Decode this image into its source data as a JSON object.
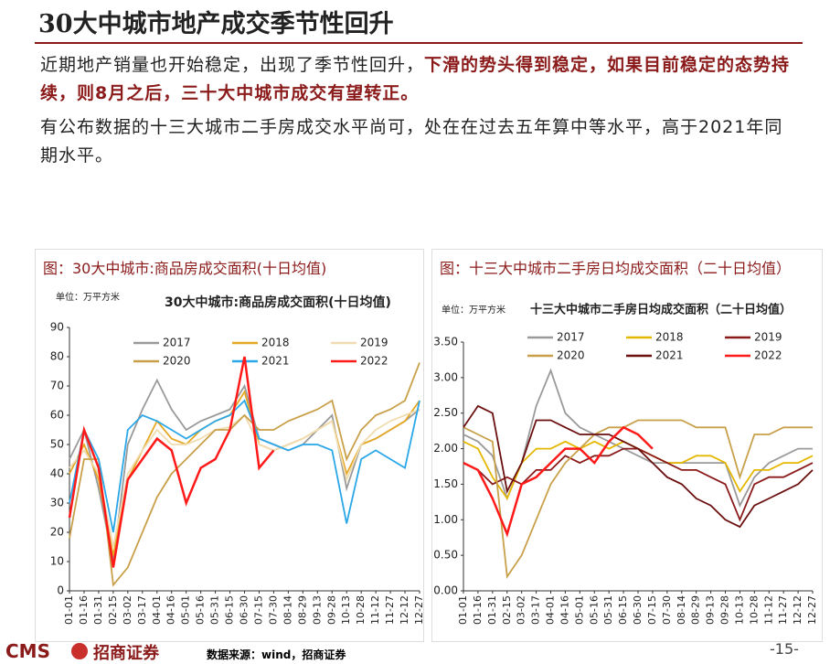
{
  "header": {
    "title": "30大中城市地产成交季节性回升"
  },
  "paragraphs": [
    {
      "text": "近期地产销量也开始稳定，出现了季节性回升，",
      "highlight": "下滑的势头得到稳定，如果目前稳定的态势持续，则8月之后，三十大中城市成交有望转正。"
    },
    {
      "text": "有公布数据的十三大城市二手房成交水平尚可，处在在过去五年算中等水平，高于2021年同期水平。"
    }
  ],
  "chart_data": [
    {
      "type": "line",
      "caption": "图：30大中城市:商品房成交面积(十日均值)",
      "unit": "单位：万平方米",
      "title": "30大中城市:商品房成交面积(十日均值)",
      "categories": [
        "01-01",
        "01-16",
        "01-31",
        "02-15",
        "03-02",
        "03-17",
        "04-01",
        "04-16",
        "05-01",
        "05-16",
        "05-31",
        "06-15",
        "06-30",
        "07-15",
        "07-30",
        "08-14",
        "08-29",
        "09-13",
        "09-28",
        "10-13",
        "10-28",
        "11-12",
        "11-27",
        "12-12",
        "12-27"
      ],
      "ylim": [
        0,
        90
      ],
      "yticks": [
        0,
        10,
        20,
        30,
        40,
        50,
        60,
        70,
        80,
        90
      ],
      "series": [
        {
          "name": "2017",
          "color": "#9a9a9a",
          "values": [
            45,
            55,
            35,
            10,
            50,
            62,
            72,
            62,
            55,
            58,
            60,
            62,
            70,
            52,
            50,
            48,
            50,
            55,
            60,
            35,
            50,
            52,
            55,
            58,
            62
          ]
        },
        {
          "name": "2018",
          "color": "#e5a823",
          "values": [
            40,
            50,
            38,
            12,
            38,
            48,
            58,
            52,
            50,
            55,
            58,
            60,
            68,
            50,
            48,
            50,
            52,
            55,
            58,
            40,
            50,
            52,
            55,
            58,
            65
          ]
        },
        {
          "name": "2019",
          "color": "#f0dcb0",
          "values": [
            42,
            48,
            40,
            15,
            40,
            48,
            55,
            50,
            50,
            52,
            55,
            56,
            60,
            50,
            48,
            50,
            52,
            55,
            58,
            38,
            50,
            55,
            58,
            60,
            62
          ]
        },
        {
          "name": "2020",
          "color": "#c9a04a",
          "values": [
            18,
            45,
            45,
            2,
            8,
            20,
            32,
            40,
            45,
            50,
            55,
            55,
            60,
            55,
            55,
            58,
            60,
            62,
            65,
            45,
            55,
            60,
            62,
            65,
            78
          ]
        },
        {
          "name": "2021",
          "color": "#2aa7e8",
          "values": [
            30,
            55,
            45,
            20,
            55,
            60,
            58,
            55,
            52,
            55,
            58,
            60,
            65,
            52,
            50,
            48,
            50,
            50,
            48,
            23,
            45,
            48,
            45,
            42,
            65
          ]
        },
        {
          "name": "2022",
          "color": "#ff1a1a",
          "values": [
            25,
            55,
            42,
            8,
            38,
            45,
            52,
            48,
            30,
            42,
            45,
            55,
            80,
            42,
            48,
            null,
            null,
            null,
            null,
            null,
            null,
            null,
            null,
            null,
            null
          ]
        }
      ]
    },
    {
      "type": "line",
      "caption": "图：十三大中城市二手房日均成交面积（二十日均值）",
      "unit": "单位：万平方米",
      "title": "十三大中城市二手房日均成交面积（二十日均值）",
      "categories": [
        "01-01",
        "01-16",
        "01-31",
        "02-15",
        "03-02",
        "03-17",
        "04-01",
        "04-16",
        "05-01",
        "05-16",
        "05-31",
        "06-15",
        "06-30",
        "07-15",
        "07-30",
        "08-14",
        "08-29",
        "09-13",
        "09-28",
        "10-13",
        "10-28",
        "11-12",
        "11-27",
        "12-12",
        "12-27"
      ],
      "ylim": [
        0,
        3.5
      ],
      "yticks": [
        {
          "value": 0,
          "label": "0.00"
        },
        {
          "value": 0.5,
          "label": "0.50"
        },
        {
          "value": 1,
          "label": "1.00"
        },
        {
          "value": 1.5,
          "label": "1.50"
        },
        {
          "value": 2,
          "label": "2.00"
        },
        {
          "value": 2.5,
          "label": "2.50"
        },
        {
          "value": 3,
          "label": "3.00"
        },
        {
          "value": 3.5,
          "label": "3.50"
        }
      ],
      "series": [
        {
          "name": "2017",
          "color": "#9a9a9a",
          "values": [
            2.2,
            2.1,
            1.9,
            1.3,
            1.8,
            2.6,
            3.1,
            2.5,
            2.3,
            2.2,
            2.1,
            2.0,
            1.9,
            1.8,
            1.8,
            1.8,
            1.8,
            1.8,
            1.8,
            1.2,
            1.6,
            1.8,
            1.9,
            2.0,
            2.0
          ]
        },
        {
          "name": "2018",
          "color": "#e5b800",
          "values": [
            2.1,
            2.0,
            1.6,
            1.3,
            1.8,
            2.0,
            2.0,
            2.1,
            2.0,
            2.1,
            2.0,
            2.1,
            2.0,
            1.9,
            1.8,
            1.8,
            1.9,
            1.9,
            1.8,
            1.4,
            1.7,
            1.7,
            1.8,
            1.8,
            1.9
          ]
        },
        {
          "name": "2019",
          "color": "#8b1a1a",
          "values": [
            1.8,
            1.7,
            1.5,
            1.6,
            1.5,
            1.7,
            1.7,
            1.9,
            1.8,
            1.9,
            1.9,
            2.0,
            2.0,
            1.9,
            1.8,
            1.7,
            1.7,
            1.6,
            1.5,
            1.0,
            1.5,
            1.6,
            1.6,
            1.7,
            1.8
          ]
        },
        {
          "name": "2020",
          "color": "#c9a04a",
          "values": [
            2.3,
            2.2,
            2.1,
            0.2,
            0.5,
            1.0,
            1.5,
            1.8,
            2.0,
            2.2,
            2.3,
            2.3,
            2.4,
            2.4,
            2.4,
            2.4,
            2.3,
            2.3,
            2.3,
            1.6,
            2.2,
            2.2,
            2.3,
            2.3,
            2.3
          ]
        },
        {
          "name": "2021",
          "color": "#6b0f0f",
          "values": [
            2.3,
            2.6,
            2.5,
            1.4,
            1.8,
            2.4,
            2.4,
            2.3,
            2.2,
            2.2,
            2.2,
            2.1,
            2.0,
            1.8,
            1.6,
            1.5,
            1.3,
            1.2,
            1.0,
            0.9,
            1.2,
            1.3,
            1.4,
            1.5,
            1.7
          ]
        },
        {
          "name": "2022",
          "color": "#ff1a1a",
          "values": [
            1.8,
            1.7,
            1.3,
            0.8,
            1.5,
            1.6,
            1.8,
            2.0,
            2.0,
            1.8,
            2.1,
            2.3,
            2.2,
            2.0,
            null,
            null,
            null,
            null,
            null,
            null,
            null,
            null,
            null,
            null,
            null
          ]
        }
      ]
    }
  ],
  "footer": {
    "logo": "CMS",
    "company": "招商证券",
    "source": "数据来源：wind，招商证券",
    "page": "-15-"
  }
}
